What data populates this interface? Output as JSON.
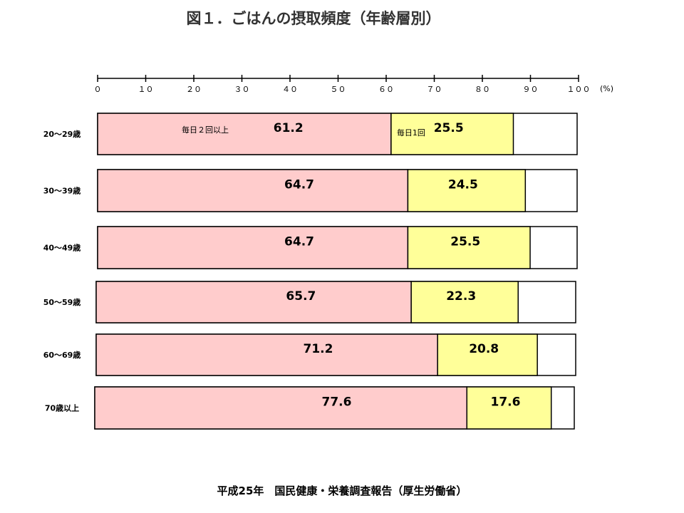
{
  "title": "図１．ごはんの摂取頻度（年齢層別）",
  "source": "平成25年　国民健康・栄養調査報告（厚生労働省）",
  "chart_data": {
    "type": "bar",
    "orientation": "horizontal",
    "stacked": true,
    "title": "図１．ごはんの摂取頻度（年齢層別）",
    "unit_label": "(%)",
    "xlim": [
      0,
      100
    ],
    "ticks": [
      "０",
      "１０",
      "２０",
      "３０",
      "４０",
      "５０",
      "６０",
      "７０",
      "８０",
      "９０",
      "１００"
    ],
    "categories": [
      "20～29歳",
      "30～39歳",
      "40～49歳",
      "50～59歳",
      "60～69歳",
      "70歳以上"
    ],
    "series": [
      {
        "name": "毎日２回以上",
        "color": "#ffcccc",
        "values": [
          61.2,
          64.7,
          64.7,
          65.7,
          71.2,
          77.6
        ]
      },
      {
        "name": "毎日1回",
        "color": "#ffff99",
        "values": [
          25.5,
          24.5,
          25.5,
          22.3,
          20.8,
          17.6
        ]
      }
    ],
    "grid": false,
    "legend": "none"
  }
}
